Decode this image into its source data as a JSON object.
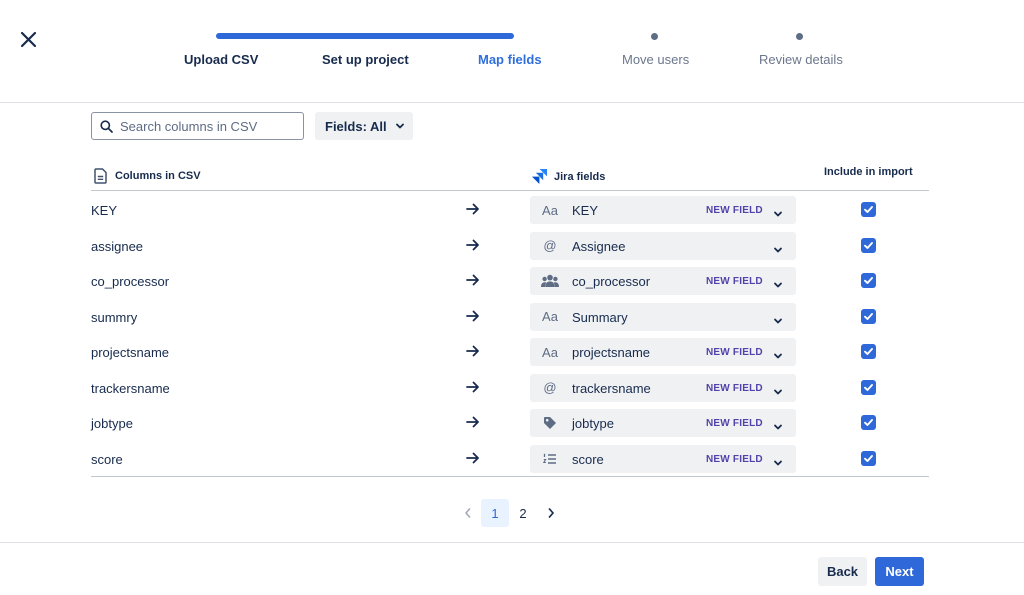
{
  "steps": [
    {
      "label": "Upload CSV",
      "state": "done"
    },
    {
      "label": "Set up project",
      "state": "done"
    },
    {
      "label": "Map fields",
      "state": "current"
    },
    {
      "label": "Move users",
      "state": "pending"
    },
    {
      "label": "Review details",
      "state": "pending"
    }
  ],
  "toolbar": {
    "search_placeholder": "Search columns in CSV",
    "search_value": "",
    "filter_label": "Fields: All"
  },
  "table": {
    "col_csv": "Columns in CSV",
    "col_jira": "Jira fields",
    "col_include": "Include in import",
    "new_field_badge": "NEW FIELD",
    "rows": [
      {
        "csv": "KEY",
        "field": "KEY",
        "icon": "text-field-icon",
        "icon_glyph": "Aa",
        "new_field": true,
        "include": true
      },
      {
        "csv": "assignee",
        "field": "Assignee",
        "icon": "user-field-icon",
        "icon_glyph": "@",
        "new_field": false,
        "include": true
      },
      {
        "csv": "co_processor",
        "field": "co_processor",
        "icon": "people-group-icon",
        "icon_glyph": "",
        "new_field": true,
        "include": true
      },
      {
        "csv": "summry",
        "field": "Summary",
        "icon": "text-field-icon",
        "icon_glyph": "Aa",
        "new_field": false,
        "include": true
      },
      {
        "csv": "projectsname",
        "field": "projectsname",
        "icon": "text-field-icon",
        "icon_glyph": "Aa",
        "new_field": true,
        "include": true
      },
      {
        "csv": "trackersname",
        "field": "trackersname",
        "icon": "user-field-icon",
        "icon_glyph": "@",
        "new_field": true,
        "include": true
      },
      {
        "csv": "jobtype",
        "field": "jobtype",
        "icon": "tag-icon",
        "icon_glyph": "",
        "new_field": true,
        "include": true
      },
      {
        "csv": "score",
        "field": "score",
        "icon": "number-list-icon",
        "icon_glyph": "",
        "new_field": true,
        "include": true
      }
    ]
  },
  "pagination": {
    "pages": [
      "1",
      "2"
    ],
    "current": "1"
  },
  "footer": {
    "back_label": "Back",
    "next_label": "Next"
  },
  "colors": {
    "accent": "#2f68d8",
    "badge": "#5243aa",
    "text": "#172b4d"
  }
}
